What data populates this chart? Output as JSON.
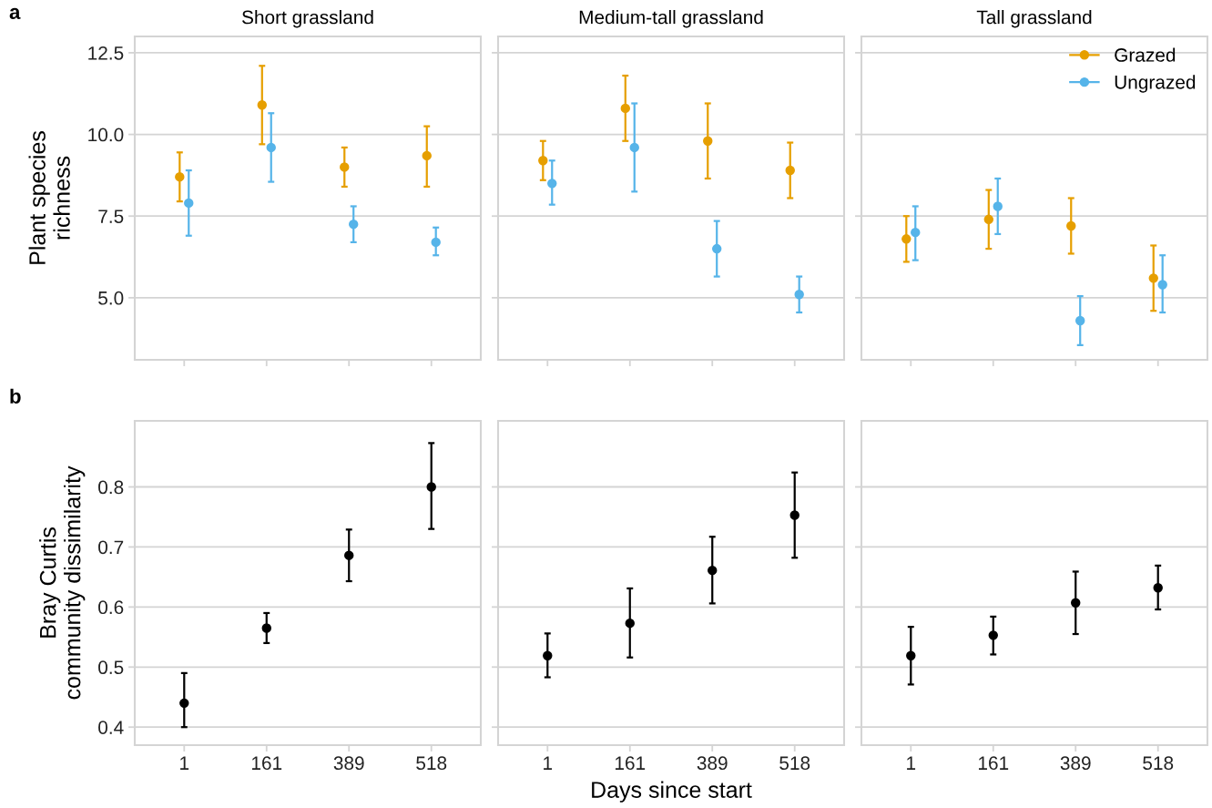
{
  "chart_data": [
    {
      "type": "scatter",
      "title": "Short grassland",
      "ylabel": "Plant species\nrichness",
      "annotations": [
        "a"
      ],
      "categories": [
        "1",
        "161",
        "389",
        "518"
      ],
      "ylim": [
        3.1,
        13.0
      ],
      "yticks": [
        {
          "value": 5,
          "label": "5.0"
        },
        {
          "value": 7.5,
          "label": "7.5"
        },
        {
          "value": 10,
          "label": "10.0"
        },
        {
          "value": 12.5,
          "label": "12.5"
        }
      ],
      "grid": "y",
      "marker": "circle",
      "tick_labels": "y",
      "series": [
        {
          "color": "#e69f00",
          "values": [
            8.7,
            10.9,
            9.0,
            9.35
          ],
          "errors": [
            [
              7.95,
              9.45
            ],
            [
              9.7,
              12.1
            ],
            [
              8.4,
              9.6
            ],
            [
              8.4,
              10.25
            ]
          ]
        },
        {
          "color": "#56b4e9",
          "values": [
            7.9,
            9.6,
            7.25,
            6.7
          ],
          "errors": [
            [
              6.9,
              8.9
            ],
            [
              8.55,
              10.65
            ],
            [
              6.7,
              7.8
            ],
            [
              6.3,
              7.15
            ]
          ]
        }
      ]
    },
    {
      "type": "scatter",
      "title": "Medium-tall grassland",
      "categories": [
        "1",
        "161",
        "389",
        "518"
      ],
      "ylim": [
        3.1,
        13.0
      ],
      "yticks": [
        {
          "value": 5,
          "label": null
        },
        {
          "value": 7.5,
          "label": null
        },
        {
          "value": 10,
          "label": null
        },
        {
          "value": 12.5,
          "label": null
        }
      ],
      "grid": "y",
      "marker": "circle",
      "tick_labels": false,
      "series": [
        {
          "color": "#e69f00",
          "values": [
            9.2,
            10.8,
            9.8,
            8.9
          ],
          "errors": [
            [
              8.6,
              9.8
            ],
            [
              9.8,
              11.8
            ],
            [
              8.65,
              10.95
            ],
            [
              8.05,
              9.75
            ]
          ]
        },
        {
          "color": "#56b4e9",
          "values": [
            8.5,
            9.6,
            6.5,
            5.1
          ],
          "errors": [
            [
              7.85,
              9.2
            ],
            [
              8.25,
              10.95
            ],
            [
              5.65,
              7.35
            ],
            [
              4.55,
              5.65
            ]
          ]
        }
      ]
    },
    {
      "type": "scatter",
      "title": "Tall grassland",
      "categories": [
        "1",
        "161",
        "389",
        "518"
      ],
      "ylim": [
        3.1,
        13.0
      ],
      "yticks": [
        {
          "value": 5,
          "label": null
        },
        {
          "value": 7.5,
          "label": null
        },
        {
          "value": 10,
          "label": null
        },
        {
          "value": 12.5,
          "label": null
        }
      ],
      "grid": "y",
      "marker": "circle",
      "tick_labels": false,
      "legend": "top right",
      "series": [
        {
          "name": "Grazed",
          "color": "#e69f00",
          "values": [
            6.8,
            7.4,
            7.2,
            5.6
          ],
          "errors": [
            [
              6.1,
              7.5
            ],
            [
              6.5,
              8.3
            ],
            [
              6.35,
              8.05
            ],
            [
              4.6,
              6.6
            ]
          ]
        },
        {
          "name": "Ungrazed",
          "color": "#56b4e9",
          "values": [
            7.0,
            7.8,
            4.3,
            5.4
          ],
          "errors": [
            [
              6.15,
              7.8
            ],
            [
              6.95,
              8.65
            ],
            [
              3.55,
              5.05
            ],
            [
              4.55,
              6.3
            ]
          ]
        }
      ]
    },
    {
      "type": "scatter",
      "ylabel": "Bray Curtis\ncommunity dissimilarity",
      "annotations": [
        "b"
      ],
      "categories": [
        "1",
        "161",
        "389",
        "518"
      ],
      "ylim": [
        0.37,
        0.91
      ],
      "yticks": [
        0.4,
        0.5,
        0.6,
        0.7,
        0.8
      ],
      "grid": "y",
      "marker": "circle",
      "series": [
        {
          "color": "#000000",
          "values": [
            0.44,
            0.565,
            0.686,
            0.8
          ],
          "errors": [
            [
              0.4,
              0.49
            ],
            [
              0.54,
              0.59
            ],
            [
              0.643,
              0.729
            ],
            [
              0.73,
              0.873
            ]
          ]
        }
      ]
    },
    {
      "type": "scatter",
      "xlabel": "Days since start",
      "categories": [
        "1",
        "161",
        "389",
        "518"
      ],
      "ylim": [
        0.37,
        0.91
      ],
      "yticks": [
        {
          "value": 0.4,
          "label": null
        },
        {
          "value": 0.5,
          "label": null
        },
        {
          "value": 0.6,
          "label": null
        },
        {
          "value": 0.7,
          "label": null
        },
        {
          "value": 0.8,
          "label": null
        }
      ],
      "grid": "y",
      "marker": "circle",
      "tick_labels": "x",
      "series": [
        {
          "color": "#000000",
          "values": [
            0.519,
            0.573,
            0.661,
            0.753
          ],
          "errors": [
            [
              0.483,
              0.556
            ],
            [
              0.516,
              0.631
            ],
            [
              0.606,
              0.717
            ],
            [
              0.682,
              0.824
            ]
          ]
        }
      ]
    },
    {
      "type": "scatter",
      "categories": [
        "1",
        "161",
        "389",
        "518"
      ],
      "ylim": [
        0.37,
        0.91
      ],
      "yticks": [
        {
          "value": 0.4,
          "label": null
        },
        {
          "value": 0.5,
          "label": null
        },
        {
          "value": 0.6,
          "label": null
        },
        {
          "value": 0.7,
          "label": null
        },
        {
          "value": 0.8,
          "label": null
        }
      ],
      "grid": "y",
      "marker": "circle",
      "tick_labels": "x",
      "series": [
        {
          "color": "#000000",
          "values": [
            0.519,
            0.553,
            0.607,
            0.632
          ],
          "errors": [
            [
              0.471,
              0.567
            ],
            [
              0.521,
              0.584
            ],
            [
              0.555,
              0.659
            ],
            [
              0.596,
              0.669
            ]
          ]
        }
      ]
    }
  ]
}
